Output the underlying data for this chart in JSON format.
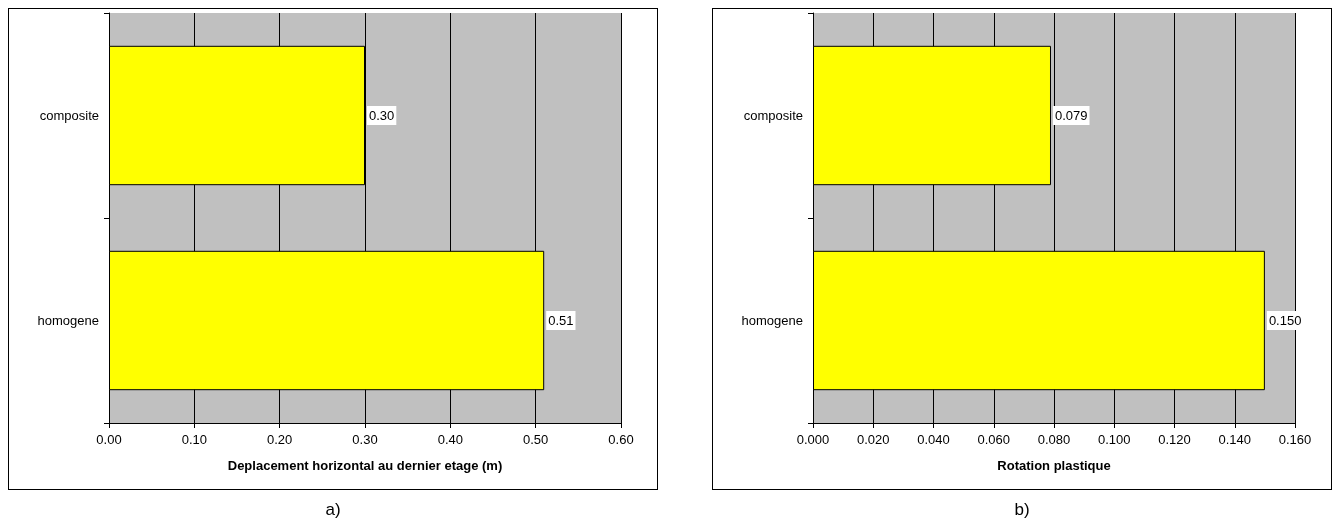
{
  "chart_data": [
    {
      "type": "bar",
      "orientation": "horizontal",
      "categories": [
        "composite",
        "homogene"
      ],
      "values": [
        0.3,
        0.51
      ],
      "value_labels": [
        "0.30",
        "0.51"
      ],
      "color": "#ffff00",
      "xlabel": "Deplacement horizontal au dernier etage (m)",
      "xlim": [
        0,
        0.6
      ],
      "xticks": [
        {
          "value": 0,
          "label": "0.00"
        },
        {
          "value": 0.1,
          "label": "0.10"
        },
        {
          "value": 0.2,
          "label": "0.20"
        },
        {
          "value": 0.3,
          "label": "0.30"
        },
        {
          "value": 0.4,
          "label": "0.40"
        },
        {
          "value": 0.5,
          "label": "0.50"
        },
        {
          "value": 0.6,
          "label": "0.60"
        }
      ],
      "grid": "x",
      "annotations": [
        "a)"
      ]
    },
    {
      "type": "bar",
      "orientation": "horizontal",
      "categories": [
        "composite",
        "homogene"
      ],
      "values": [
        0.079,
        0.15
      ],
      "value_labels": [
        "0.079",
        "0.150"
      ],
      "color": "#ffff00",
      "xlabel": "Rotation plastique",
      "xlim": [
        0,
        0.16
      ],
      "xticks": [
        {
          "value": 0,
          "label": "0.000"
        },
        {
          "value": 0.02,
          "label": "0.020"
        },
        {
          "value": 0.04,
          "label": "0.040"
        },
        {
          "value": 0.06,
          "label": "0.060"
        },
        {
          "value": 0.08,
          "label": "0.080"
        },
        {
          "value": 0.1,
          "label": "0.100"
        },
        {
          "value": 0.12,
          "label": "0.120"
        },
        {
          "value": 0.14,
          "label": "0.140"
        },
        {
          "value": 0.16,
          "label": "0.160"
        }
      ],
      "grid": "x",
      "annotations": [
        "b)"
      ]
    }
  ]
}
